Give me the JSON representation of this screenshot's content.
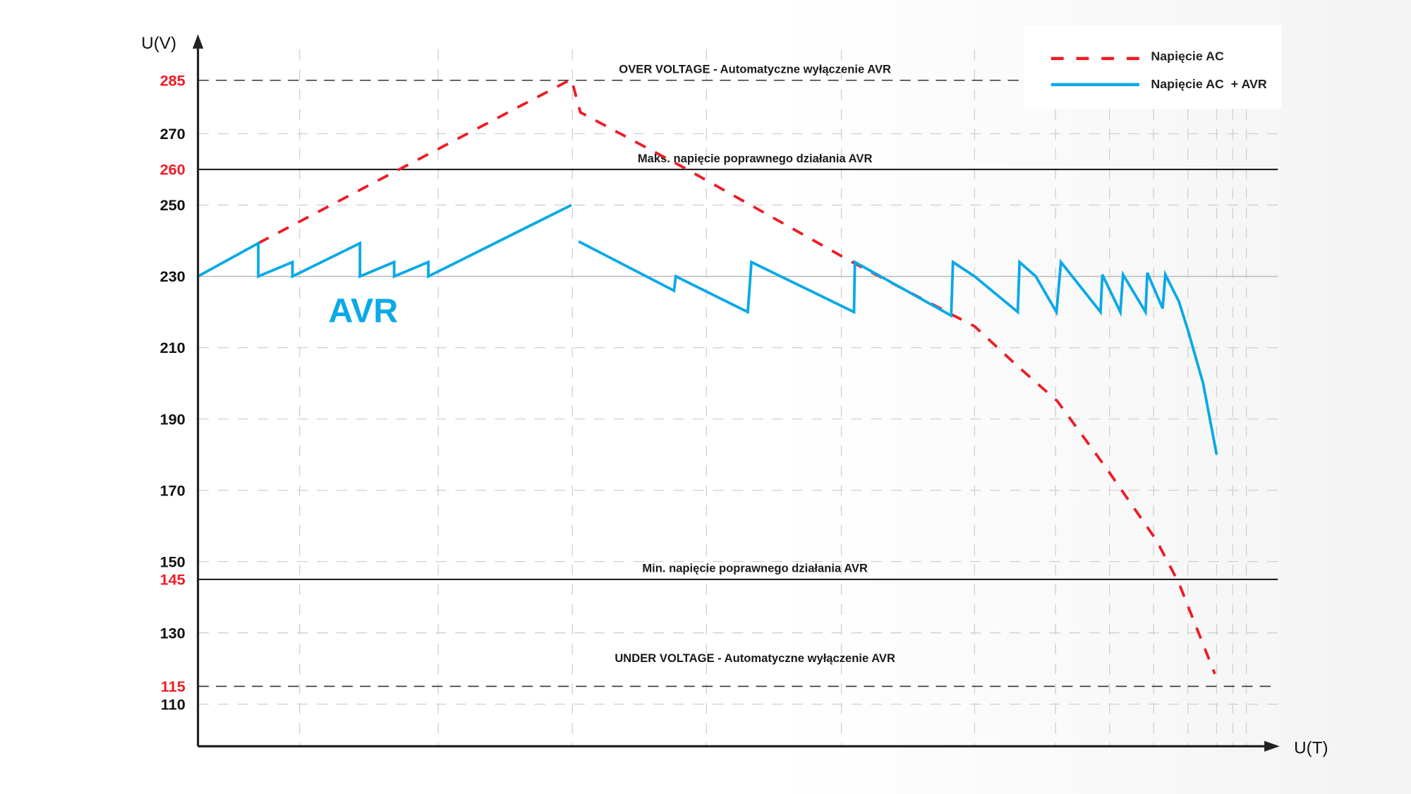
{
  "chart_data": {
    "type": "line",
    "title": "",
    "xlabel": "U(T)",
    "ylabel": "U(V)",
    "xlim": [
      0,
      1200
    ],
    "ylim": [
      98,
      300
    ],
    "grid": true,
    "legend_position": "top-right",
    "y_ticks": [
      {
        "value": 285,
        "label": "285",
        "color": "#ee1c25"
      },
      {
        "value": 270,
        "label": "270",
        "color": "#111111"
      },
      {
        "value": 260,
        "label": "260",
        "color": "#ee1c25"
      },
      {
        "value": 250,
        "label": "250",
        "color": "#111111"
      },
      {
        "value": 230,
        "label": "230",
        "color": "#111111"
      },
      {
        "value": 210,
        "label": "210",
        "color": "#111111"
      },
      {
        "value": 190,
        "label": "190",
        "color": "#111111"
      },
      {
        "value": 170,
        "label": "170",
        "color": "#111111"
      },
      {
        "value": 150,
        "label": "150",
        "color": "#111111"
      },
      {
        "value": 145,
        "label": "145",
        "color": "#ee1c25"
      },
      {
        "value": 130,
        "label": "130",
        "color": "#111111"
      },
      {
        "value": 115,
        "label": "115",
        "color": "#ee1c25"
      },
      {
        "value": 110,
        "label": "110",
        "color": "#111111"
      }
    ],
    "x_gridlines": [
      113,
      267,
      416,
      565,
      715,
      863,
      953,
      1013,
      1062,
      1100,
      1132,
      1150,
      1165
    ],
    "y_gridlines": [
      270,
      250,
      210,
      190,
      170,
      150,
      130,
      110
    ],
    "reference_lines": [
      {
        "value": 285,
        "style": "dashed",
        "color": "#333333",
        "label": "OVER VOLTAGE - Automatyczne wyłączenie AVR"
      },
      {
        "value": 260,
        "style": "solid",
        "color": "#222222",
        "label": "Maks. napięcie poprawnego działania AVR"
      },
      {
        "value": 230,
        "style": "solid",
        "color": "#bbbbbb",
        "label": ""
      },
      {
        "value": 145,
        "style": "solid",
        "color": "#222222",
        "label": "Min. napięcie poprawnego działania AVR"
      },
      {
        "value": 115,
        "style": "dashed",
        "color": "#333333",
        "label": "UNDER VOLTAGE - Automatyczne wyłączenie AVR"
      }
    ],
    "annotation": {
      "text": "AVR",
      "color": "#0aa9e8"
    },
    "series": [
      {
        "name": "Napięcie AC",
        "color": "#ee1c25",
        "style": "dashed",
        "segments": [
          [
            [
              67,
              239.3
            ],
            [
              415,
              285.3
            ],
            [
              425,
              276
            ],
            [
              540,
              260.5
            ],
            [
              727,
              234
            ],
            [
              840,
              219
            ],
            [
              863,
              216
            ],
            [
              910,
              205
            ],
            [
              955,
              195
            ],
            [
              1010,
              176
            ],
            [
              1065,
              156
            ],
            [
              1090,
              144
            ],
            [
              1130,
              118.5
            ]
          ]
        ]
      },
      {
        "name": "Napięcie AC  + AVR",
        "color": "#0aa9e8",
        "style": "solid",
        "segments": [
          [
            [
              0,
              230
            ],
            [
              67,
              239.3
            ],
            [
              67,
              230
            ],
            [
              105,
              234
            ],
            [
              105,
              230
            ],
            [
              180,
              239.3
            ],
            [
              180,
              230
            ],
            [
              218,
              234
            ],
            [
              218,
              230
            ],
            [
              256,
              234
            ],
            [
              256,
              230
            ],
            [
              415,
              250
            ]
          ],
          [
            [
              423,
              239.8
            ],
            [
              529,
              226
            ],
            [
              531,
              230
            ],
            [
              611,
              220
            ],
            [
              615,
              234
            ],
            [
              729,
              220
            ],
            [
              730,
              234
            ],
            [
              837,
              219
            ],
            [
              839,
              234
            ],
            [
              863,
              230
            ],
            [
              911,
              220
            ],
            [
              913,
              234
            ],
            [
              931,
              230
            ],
            [
              954,
              220
            ],
            [
              959,
              234
            ],
            [
              1003,
              220
            ],
            [
              1005,
              230.5
            ],
            [
              1025,
              220
            ],
            [
              1028,
              230.5
            ],
            [
              1053,
              220
            ],
            [
              1055,
              231
            ],
            [
              1072,
              221
            ],
            [
              1075,
              230.5
            ],
            [
              1090,
              223
            ],
            [
              1100,
              215
            ],
            [
              1117,
              200
            ],
            [
              1132,
              180
            ]
          ]
        ]
      }
    ]
  }
}
